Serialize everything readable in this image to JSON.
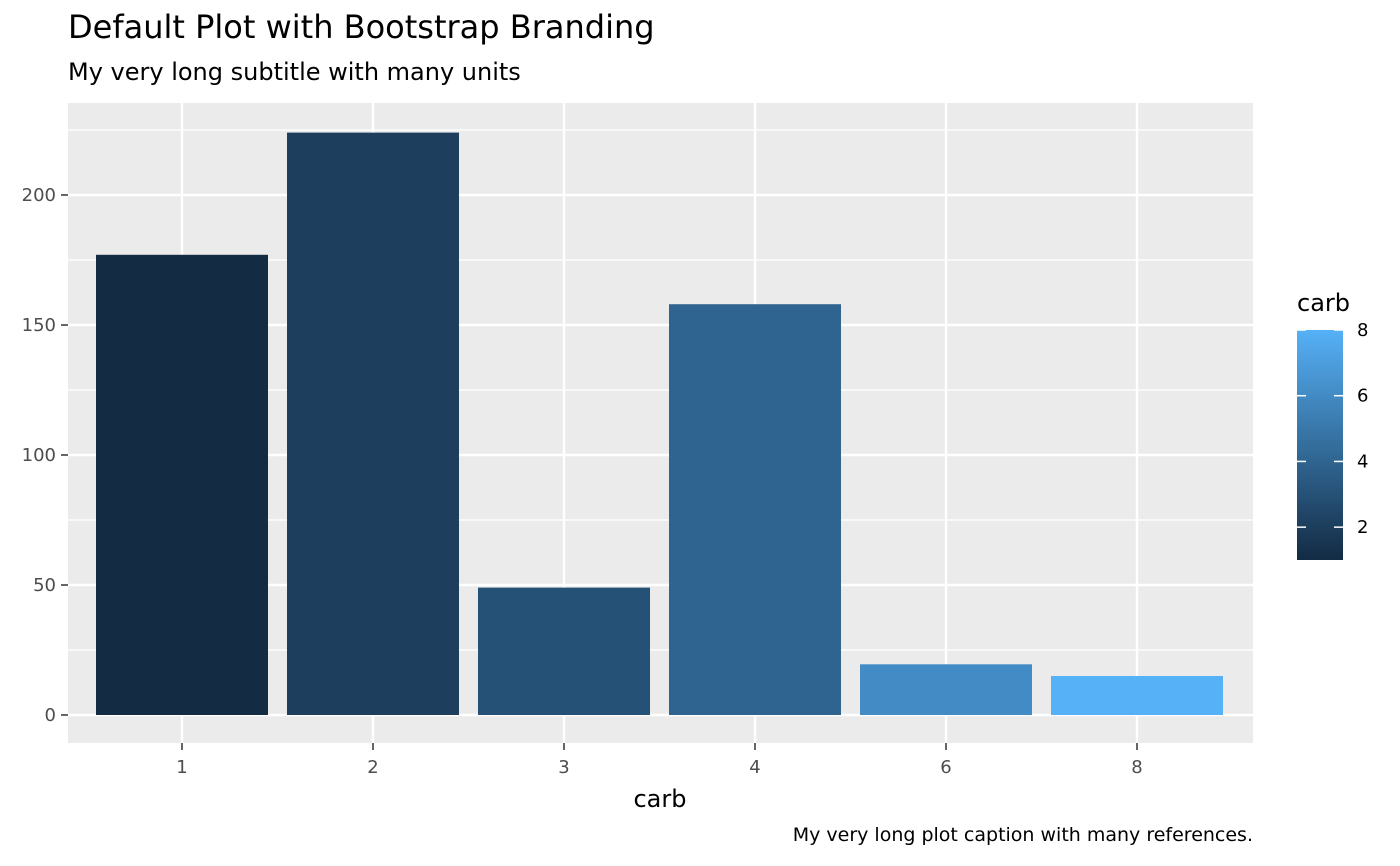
{
  "chart_data": {
    "type": "bar",
    "title": "Default Plot with Bootstrap Branding",
    "subtitle": "My very long subtitle with many units",
    "caption": "My very long plot caption with many references.",
    "xlabel": "carb",
    "ylabel": "",
    "categories": [
      "1",
      "2",
      "3",
      "4",
      "6",
      "8"
    ],
    "carb_values": [
      1,
      2,
      3,
      4,
      6,
      8
    ],
    "values": [
      177,
      224,
      49,
      158,
      19.5,
      15
    ],
    "ylim": [
      0,
      230
    ],
    "yticks": [
      0,
      50,
      100,
      150,
      200
    ],
    "grid": true,
    "legend": {
      "title": "carb",
      "position": "right",
      "type": "colorbar",
      "range": [
        1,
        8
      ],
      "ticks": [
        2,
        4,
        6,
        8
      ],
      "low_color": "#132B43",
      "high_color": "#56B1F7"
    },
    "panel_color": "#EBEBEB",
    "grid_color": "#FFFFFF"
  }
}
